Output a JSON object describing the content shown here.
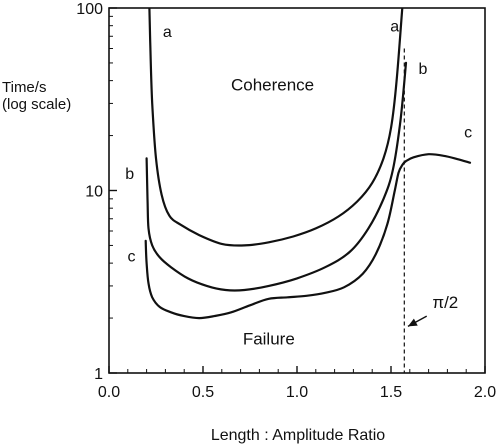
{
  "chart_data": {
    "type": "line",
    "title": "",
    "xlabel": "Length : Amplitude Ratio",
    "ylabel_lines": [
      "Time/s",
      "(log scale)"
    ],
    "xlim": [
      0.0,
      2.0
    ],
    "ylim": [
      1,
      100
    ],
    "yscale": "log",
    "grid": false,
    "legend": "none",
    "xticks": [
      0.0,
      0.5,
      1.0,
      1.5,
      2.0
    ],
    "xtick_labels": [
      "0.0",
      "0.5",
      "1.0",
      "1.5",
      "2.0"
    ],
    "yticks": [
      1,
      10,
      100
    ],
    "ytick_labels": [
      "1",
      "10",
      "100"
    ],
    "line_color": "#111111",
    "series": [
      {
        "name": "a",
        "x": [
          0.215,
          0.22,
          0.23,
          0.25,
          0.28,
          0.32,
          0.38,
          0.48,
          0.6,
          0.72,
          0.85,
          0.98,
          1.1,
          1.22,
          1.32,
          1.4,
          1.46,
          1.5,
          1.53,
          1.56
        ],
        "y": [
          100,
          60,
          30,
          15,
          9.5,
          7.3,
          6.5,
          5.7,
          5.1,
          5.0,
          5.2,
          5.6,
          6.2,
          7.2,
          8.7,
          11,
          15,
          22,
          40,
          100
        ]
      },
      {
        "name": "b",
        "x": [
          0.2,
          0.205,
          0.21,
          0.23,
          0.27,
          0.33,
          0.42,
          0.52,
          0.62,
          0.72,
          0.85,
          1.0,
          1.15,
          1.28,
          1.38,
          1.46,
          1.51,
          1.55,
          1.58
        ],
        "y": [
          15,
          9,
          6.2,
          5.0,
          4.3,
          3.8,
          3.3,
          3.0,
          2.85,
          2.85,
          3.0,
          3.3,
          3.8,
          4.6,
          6.2,
          9,
          13,
          24,
          50
        ]
      },
      {
        "name": "c",
        "x": [
          0.195,
          0.2,
          0.21,
          0.23,
          0.27,
          0.33,
          0.4,
          0.48,
          0.56,
          0.65,
          0.75,
          0.85,
          0.95,
          1.05,
          1.15,
          1.25,
          1.35,
          1.42,
          1.48,
          1.52,
          1.54,
          1.56,
          1.58,
          1.62,
          1.7,
          1.78,
          1.86,
          1.92
        ],
        "y": [
          5.3,
          4.0,
          3.1,
          2.6,
          2.3,
          2.15,
          2.05,
          2.0,
          2.05,
          2.15,
          2.35,
          2.55,
          2.6,
          2.65,
          2.75,
          2.95,
          3.5,
          4.5,
          6.5,
          10,
          12.5,
          13.8,
          14.5,
          15.2,
          15.8,
          15.5,
          14.8,
          14.2
        ]
      }
    ],
    "curve_labels": [
      {
        "text": "a",
        "x": 0.31,
        "y": 75
      },
      {
        "text": "a",
        "x": 1.52,
        "y": 80
      },
      {
        "text": "b",
        "x": 0.11,
        "y": 12.5
      },
      {
        "text": "b",
        "x": 1.67,
        "y": 47
      },
      {
        "text": "c",
        "x": 0.12,
        "y": 4.4
      },
      {
        "text": "c",
        "x": 1.91,
        "y": 21
      }
    ],
    "annotations": [
      {
        "text": "Coherence",
        "x": 0.87,
        "y": 38
      },
      {
        "text": "Failure",
        "x": 0.85,
        "y": 1.55
      },
      {
        "text": "π/2",
        "x": 1.72,
        "y": 2.45
      }
    ],
    "reference_line": {
      "x": 1.5708,
      "style": "dashed"
    },
    "arrow": {
      "from": {
        "x": 1.69,
        "y": 2.05
      },
      "to": {
        "x": 1.59,
        "y": 1.8
      }
    }
  }
}
